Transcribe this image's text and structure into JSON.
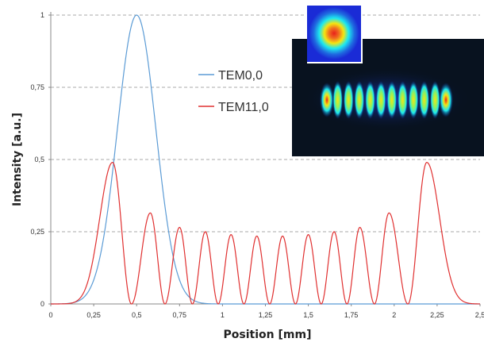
{
  "chart_data": {
    "type": "line",
    "xlabel": "Position [mm]",
    "ylabel": "Intensity [a.u.]",
    "xlim": [
      0,
      2.5
    ],
    "ylim": [
      0,
      1
    ],
    "x_ticks": [
      0,
      0.25,
      0.5,
      0.75,
      1,
      1.25,
      1.5,
      1.75,
      2,
      2.25,
      2.5
    ],
    "x_tick_labels": [
      "0",
      "0,25",
      "0,5",
      "0,75",
      "1",
      "1,25",
      "1,5",
      "1,75",
      "2",
      "2,25",
      "2,5"
    ],
    "y_ticks": [
      0,
      0.25,
      0.5,
      0.75,
      1
    ],
    "y_tick_labels": [
      "0",
      "0,25",
      "0,5",
      "0,75",
      "1"
    ],
    "grid": "horizontal dashed",
    "legend_position": "center-right",
    "series": [
      {
        "name": "TEM0,0",
        "color": "#5b9bd5",
        "x": [
          0,
          0.05,
          0.1,
          0.15,
          0.2,
          0.25,
          0.3,
          0.35,
          0.4,
          0.45,
          0.5,
          0.55,
          0.6,
          0.65,
          0.7,
          0.75,
          0.8,
          0.85,
          0.9,
          0.95,
          1.0,
          1.1,
          1.2,
          1.3,
          1.5,
          2.0,
          2.5
        ],
        "y": [
          0.003,
          0.008,
          0.019,
          0.044,
          0.092,
          0.17,
          0.286,
          0.44,
          0.632,
          0.85,
          1.0,
          0.89,
          0.69,
          0.47,
          0.29,
          0.16,
          0.079,
          0.035,
          0.013,
          0.005,
          0.002,
          0.0,
          0.0,
          0.0,
          0.0,
          0.0,
          0.0
        ]
      },
      {
        "name": "TEM11,0",
        "color": "#e03030",
        "peaks_x": [
          0.36,
          0.58,
          0.75,
          0.9,
          1.05,
          1.2,
          1.35,
          1.5,
          1.65,
          1.8,
          1.97,
          2.19
        ],
        "peaks_y": [
          0.49,
          0.315,
          0.265,
          0.25,
          0.24,
          0.235,
          0.235,
          0.24,
          0.25,
          0.265,
          0.315,
          0.49
        ]
      }
    ]
  },
  "inset_images": [
    {
      "name": "TEM0,0 beam profile",
      "colors": [
        "#1a2bd6",
        "#1de9f0",
        "#f5e510",
        "#e8201c"
      ]
    },
    {
      "name": "TEM11,0 beam profile",
      "colors": [
        "#08121f",
        "#1a2bd6",
        "#1de9f0",
        "#f5e510",
        "#e8201c"
      ]
    }
  ]
}
